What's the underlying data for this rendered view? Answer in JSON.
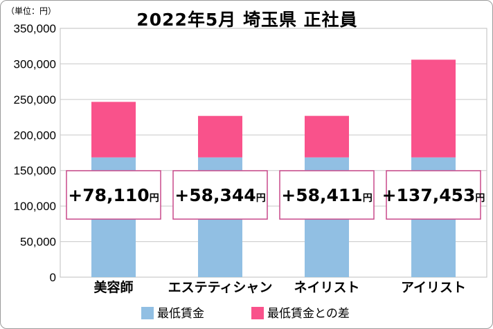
{
  "header": {
    "unit_note": "（単位：円）",
    "title": "2022年5月 埼玉県 正社員"
  },
  "chart_data": {
    "type": "bar",
    "stacked": true,
    "title": "2022年5月 埼玉県 正社員",
    "unit": "（単位：円）",
    "categories": [
      "美容師",
      "エステティシャン",
      "ネイリスト",
      "アイリスト"
    ],
    "series": [
      {
        "name": "最低賃金",
        "color": "#91bfe3",
        "values": [
          168470,
          168470,
          168470,
          168470
        ]
      },
      {
        "name": "最低賃金との差",
        "color": "#f9528b",
        "values": [
          78110,
          58344,
          58411,
          137453
        ]
      }
    ],
    "difference_labels": [
      "+78,110円",
      "+58,344円",
      "+58,411円",
      "+137,453円"
    ],
    "ylim": [
      0,
      350000
    ],
    "yticks": [
      0,
      50000,
      100000,
      150000,
      200000,
      250000,
      300000,
      350000
    ],
    "ytick_labels": [
      "0",
      "50,000",
      "100,000",
      "150,000",
      "200,000",
      "250,000",
      "300,000",
      "350,000"
    ],
    "grid": true,
    "legend_position": "bottom",
    "callout_border_color": "#c9488a"
  }
}
